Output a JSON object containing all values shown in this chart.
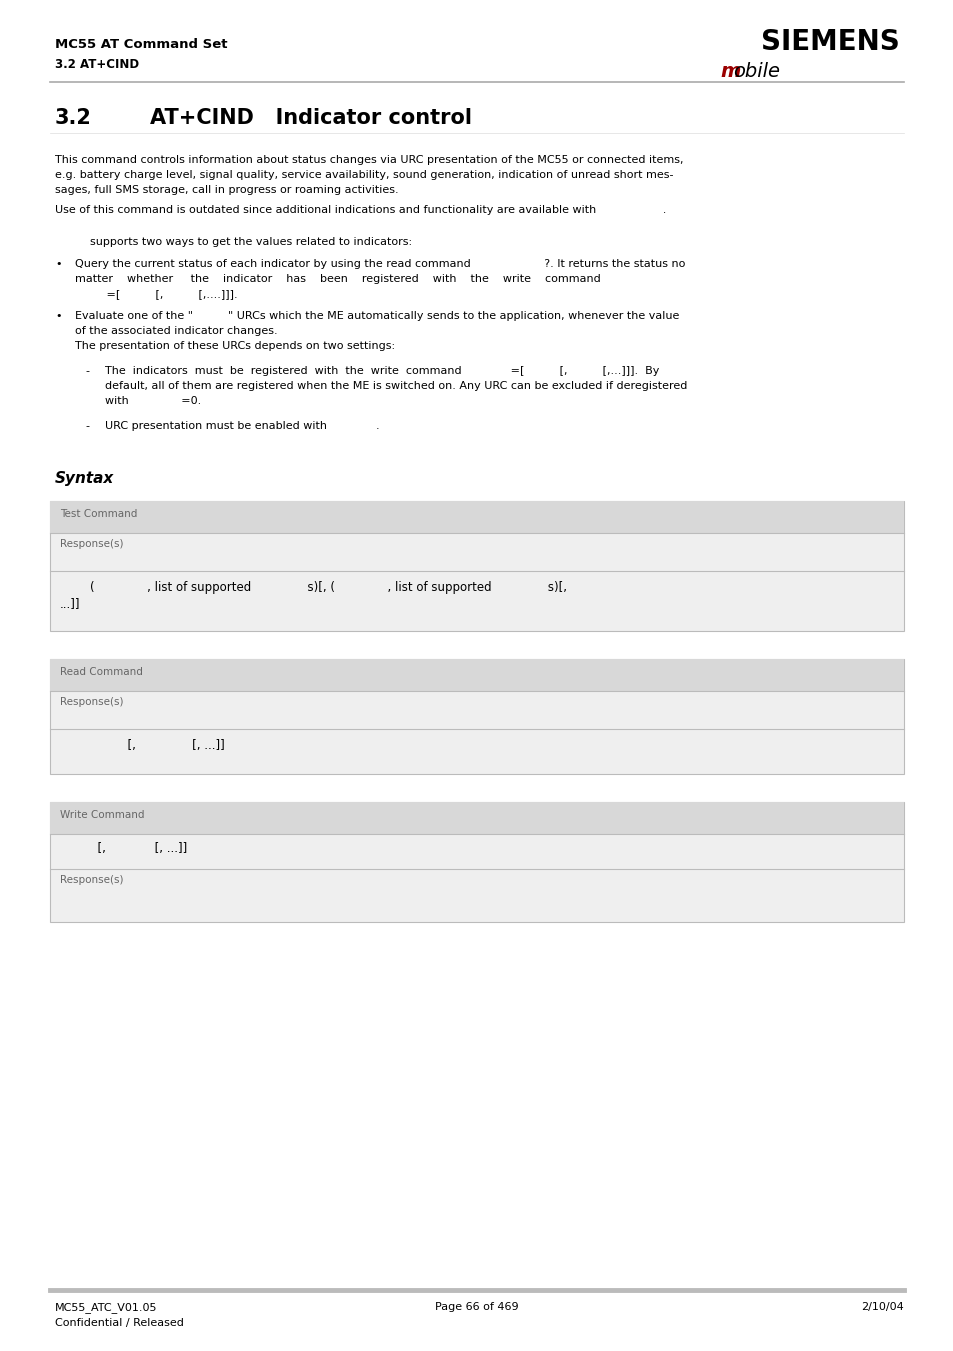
{
  "page_width": 9.54,
  "page_height": 13.51,
  "dpi": 100,
  "bg_color": "#ffffff",
  "header_title": "MC55 AT Command Set",
  "header_subtitle": "3.2 AT+CIND",
  "siemens_text": "SIEMENS",
  "mobile_black": "obile",
  "mobile_m_color": "#9b0000",
  "section_number": "3.2",
  "section_title": "AT+CIND   Indicator control",
  "body_text_1a": "This command controls information about status changes via URC presentation of the MC55 or connected items,",
  "body_text_1b": "e.g. battery charge level, signal quality, service availability, sound generation, indication of unread short mes-",
  "body_text_1c": "sages, full SMS storage, call in progress or roaming activities.",
  "body_text_2": "Use of this command is outdated since additional indications and functionality are available with                   .",
  "body_text_3": "          supports two ways to get the values related to indicators:",
  "bullet1_line1": "Query the current status of each indicator by using the read command                     ?. It returns the status no",
  "bullet1_line2": "matter    whether     the    indicator    has    been    registered    with    the    write    command",
  "bullet1_line3": "         =[          [,          [,....]]]. ",
  "bullet2_line1": "Evaluate one of the \"          \" URCs which the ME automatically sends to the application, whenever the value",
  "bullet2_line2": "of the associated indicator changes.",
  "bullet2_line3": "The presentation of these URCs depends on two settings:",
  "dash1_line1": "The  indicators  must  be  registered  with  the  write  command              =[          [,          [,...]]].  By",
  "dash1_line2": "default, all of them are registered when the ME is switched on. Any URC can be excluded if deregistered",
  "dash1_line3": "with               =0.",
  "dash2_line1": "URC presentation must be enabled with              .",
  "syntax_label": "Syntax",
  "box1_label": "Test Command",
  "box1_response_label": "Response(s)",
  "box1_response_line1": "        (              , list of supported               s)[, (              , list of supported               s)[,",
  "box1_response_line2": "...]]",
  "box2_label": "Read Command",
  "box2_response_label": "Response(s)",
  "box2_response_line1": "                  [,               [, ...]]",
  "box3_label": "Write Command",
  "box3_cmd_line1": "          [,             [, ...]]",
  "box3_response_label": "Response(s)",
  "footer_left1": "MC55_ATC_V01.05",
  "footer_left2": "Confidential / Released",
  "footer_center": "Page 66 of 469",
  "footer_right": "2/10/04",
  "box_header_color": "#d8d8d8",
  "box_body_color": "#efefef",
  "box_border_color": "#bbbbbb",
  "text_color": "#000000",
  "gray_text_color": "#666666",
  "header_line_color": "#aaaaaa",
  "footer_line_color": "#bbbbbb"
}
